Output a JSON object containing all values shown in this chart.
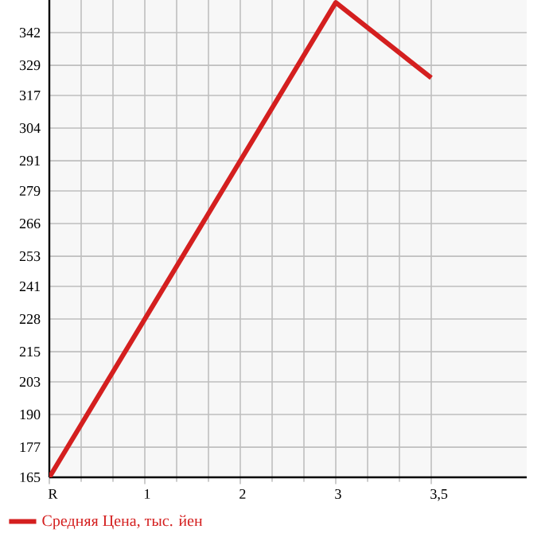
{
  "chart_data": {
    "type": "line",
    "categories": [
      "R",
      "1",
      "2",
      "3",
      "3,5"
    ],
    "series": [
      {
        "name": "Средняя Цена, тыс. йен",
        "color": "#d41f1f",
        "values": [
          165,
          null,
          null,
          354,
          324
        ]
      }
    ],
    "ylim": [
      165,
      355
    ],
    "yticks": [
      165,
      177,
      190,
      203,
      215,
      228,
      241,
      253,
      266,
      279,
      291,
      304,
      317,
      329,
      342
    ],
    "grid": true,
    "legend": "bottom",
    "line_style": "solid"
  }
}
